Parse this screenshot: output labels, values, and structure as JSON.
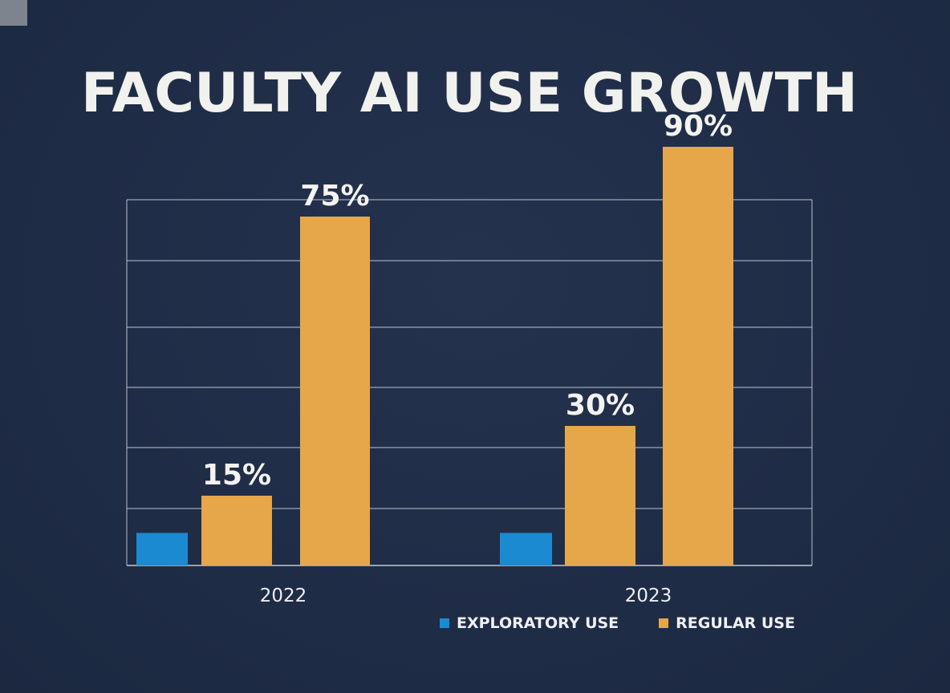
{
  "chart_data": {
    "type": "bar",
    "title": "FACULTY AI USE GROWTH",
    "categories": [
      "2022",
      "2023"
    ],
    "series": [
      {
        "name": "EXPLORATORY USE",
        "color": "#1b8ad1",
        "values": [
          7,
          7
        ],
        "labels": [
          "",
          ""
        ]
      },
      {
        "name": "REGULAR USE",
        "color": "#e6a64a",
        "values": [
          15,
          30
        ],
        "labels": [
          "15%",
          "30%"
        ]
      },
      {
        "name": "REGULAR USE",
        "color": "#e6a64a",
        "values": [
          75,
          90
        ],
        "labels": [
          "75%",
          "90%"
        ]
      }
    ],
    "legend": [
      {
        "label": "EXPLORATORY USE",
        "color": "#1b8ad1"
      },
      {
        "label": "REGULAR USE",
        "color": "#e6a64a"
      }
    ],
    "legend_position": "bottom-right",
    "grid": true,
    "xlabel": "",
    "ylabel": ""
  }
}
